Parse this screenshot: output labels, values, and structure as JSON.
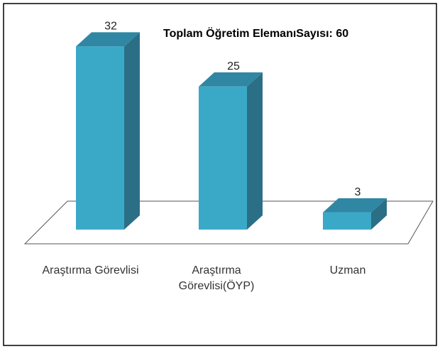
{
  "chart_data": {
    "type": "bar3d",
    "title": "Toplam Öğretim ElemanıSayısı: 60",
    "categories": [
      "Araştırma Görevlisi",
      "Araştırma Görevlisi(ÖYP)",
      "Uzman"
    ],
    "values": [
      32,
      25,
      3
    ],
    "color": "#3aa9c8"
  }
}
